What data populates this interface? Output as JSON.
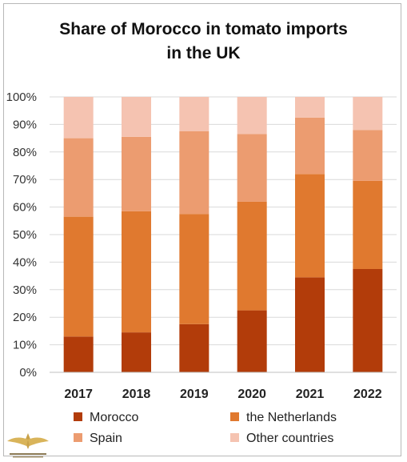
{
  "chart_data": {
    "type": "bar",
    "stacked": true,
    "title_line1": "Share of Morocco in tomato imports",
    "title_line2": "in the UK",
    "xlabel": "",
    "ylabel": "",
    "categories": [
      "2017",
      "2018",
      "2019",
      "2020",
      "2021",
      "2022"
    ],
    "ylim": [
      0,
      100
    ],
    "yticks": [
      "0%",
      "10%",
      "20%",
      "30%",
      "40%",
      "50%",
      "60%",
      "70%",
      "80%",
      "90%",
      "100%"
    ],
    "grid": true,
    "legend_position": "bottom",
    "series": [
      {
        "name": "Morocco",
        "color": "#b23c0a",
        "values": [
          13,
          14.5,
          17.5,
          22.5,
          34.5,
          37.5
        ]
      },
      {
        "name": "the Netherlands",
        "color": "#e0792f",
        "values": [
          43.5,
          44,
          40,
          39.5,
          37.5,
          32
        ]
      },
      {
        "name": "Spain",
        "color": "#ec9c70",
        "values": [
          28.5,
          27,
          30,
          24.5,
          20.5,
          18.5
        ]
      },
      {
        "name": "Other countries",
        "color": "#f5c3b1",
        "values": [
          15,
          14.5,
          12.5,
          13.5,
          7.5,
          12
        ]
      }
    ]
  }
}
